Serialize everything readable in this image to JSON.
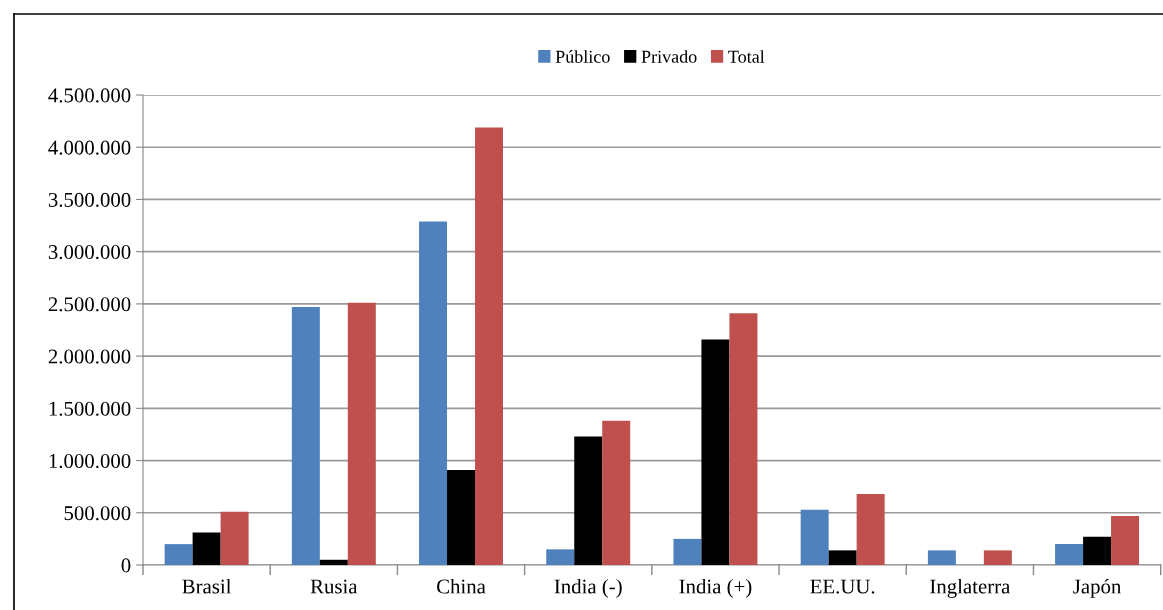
{
  "chart_data": {
    "type": "bar",
    "categories": [
      "Brasil",
      "Rusia",
      "China",
      "India (-)",
      "India (+)",
      "EE.UU.",
      "Inglaterra",
      "Japón"
    ],
    "series": [
      {
        "name": "Público",
        "color": "#4f81bd",
        "values": [
          200000,
          2470000,
          3290000,
          150000,
          250000,
          530000,
          140000,
          200000
        ]
      },
      {
        "name": "Privado",
        "color": "#000000",
        "values": [
          310000,
          50000,
          910000,
          1230000,
          2160000,
          140000,
          0,
          270000
        ]
      },
      {
        "name": "Total",
        "color": "#c0504d",
        "values": [
          510000,
          2510000,
          4190000,
          1380000,
          2410000,
          680000,
          140000,
          470000
        ]
      }
    ],
    "ylim": [
      0,
      4500000
    ],
    "yticks": [
      {
        "value": 0,
        "label": "0"
      },
      {
        "value": 500000,
        "label": "500.000"
      },
      {
        "value": 1000000,
        "label": "1.000.000"
      },
      {
        "value": 1500000,
        "label": "1.500.000"
      },
      {
        "value": 2000000,
        "label": "2.000.000"
      },
      {
        "value": 2500000,
        "label": "2.500.000"
      },
      {
        "value": 3000000,
        "label": "3.000.000"
      },
      {
        "value": 3500000,
        "label": "3.500.000"
      },
      {
        "value": 4000000,
        "label": "4.000.000"
      },
      {
        "value": 4500000,
        "label": "4.500.000"
      }
    ],
    "grid": "y",
    "legend": "top"
  }
}
